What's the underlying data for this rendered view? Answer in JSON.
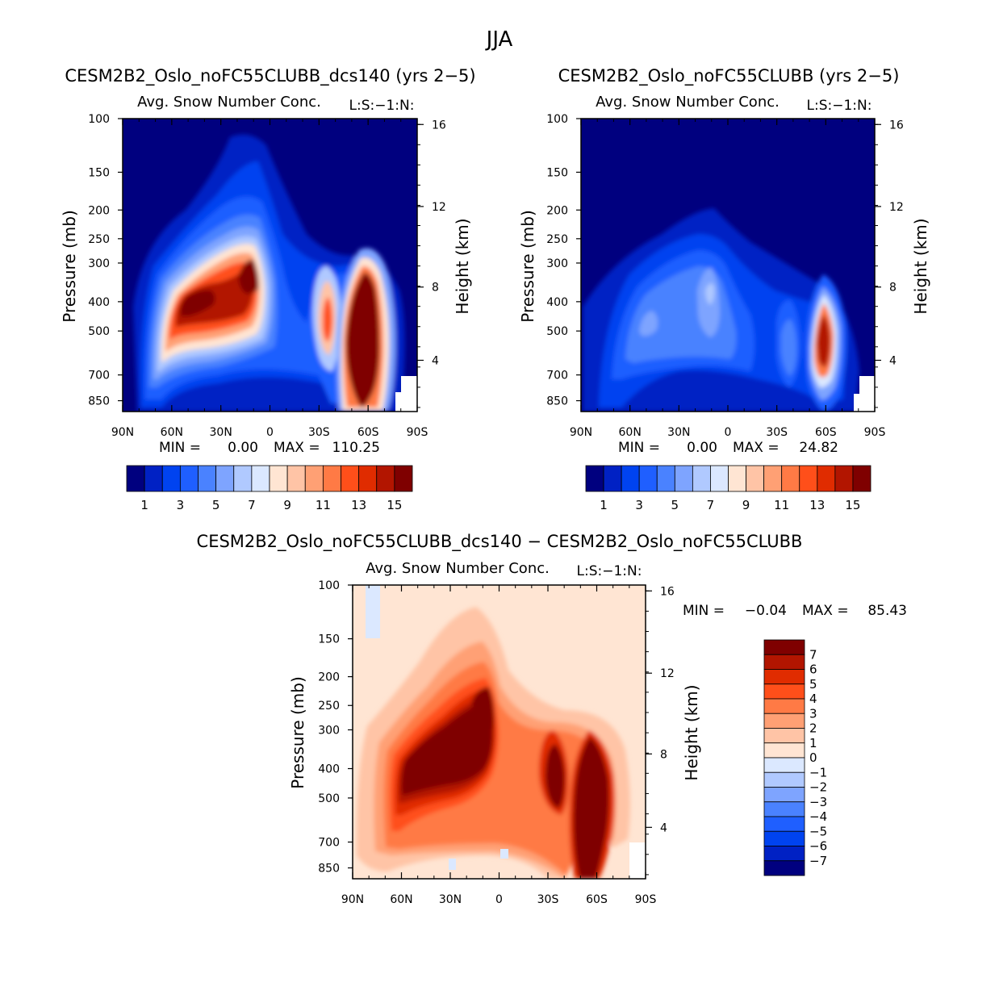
{
  "figure_title": "JJA",
  "chart_data": [
    {
      "type": "heatmap",
      "title": "CESM2B2_Oslo_noFC55CLUBB_dcs140 (yrs 2−5)",
      "subtitle": "Avg. Snow Number Conc.",
      "subtitle_suffix": "L:S:−1:N:",
      "xlabel": "",
      "ylabel": "Pressure (mb)",
      "ylabel_right": "Height (km)",
      "x_ticks": [
        "90N",
        "60N",
        "30N",
        "0",
        "30S",
        "60S",
        "90S"
      ],
      "y_ticks": [
        "100",
        "150",
        "200",
        "250",
        "300",
        "400",
        "500",
        "700",
        "850"
      ],
      "y_ticks_right": [
        "16",
        "12",
        "8",
        "4"
      ],
      "min_label": "MIN =",
      "min_value": "0.00",
      "max_label": "MAX =",
      "max_value": "110.25",
      "colorbar_labels": [
        "1",
        "3",
        "5",
        "7",
        "9",
        "11",
        "13",
        "15"
      ],
      "palette": [
        "#00007f",
        "#0021c4",
        "#0043f0",
        "#1f5fff",
        "#4a82ff",
        "#7ea4ff",
        "#b0c9ff",
        "#dbe8ff",
        "#ffe5d3",
        "#ffc4a6",
        "#ffa074",
        "#ff7a45",
        "#ff4f1a",
        "#e02c00",
        "#b21500",
        "#7f0000"
      ]
    },
    {
      "type": "heatmap",
      "title": "CESM2B2_Oslo_noFC55CLUBB (yrs 2−5)",
      "subtitle": "Avg. Snow Number Conc.",
      "subtitle_suffix": "L:S:−1:N:",
      "xlabel": "",
      "ylabel": "Pressure (mb)",
      "ylabel_right": "Height (km)",
      "x_ticks": [
        "90N",
        "60N",
        "30N",
        "0",
        "30S",
        "60S",
        "90S"
      ],
      "y_ticks": [
        "100",
        "150",
        "200",
        "250",
        "300",
        "400",
        "500",
        "700",
        "850"
      ],
      "y_ticks_right": [
        "16",
        "12",
        "8",
        "4"
      ],
      "min_label": "MIN =",
      "min_value": "0.00",
      "max_label": "MAX =",
      "max_value": "24.82",
      "colorbar_labels": [
        "1",
        "3",
        "5",
        "7",
        "9",
        "11",
        "13",
        "15"
      ]
    },
    {
      "type": "heatmap",
      "title": "CESM2B2_Oslo_noFC55CLUBB_dcs140 − CESM2B2_Oslo_noFC55CLUBB",
      "subtitle": "Avg. Snow Number Conc.",
      "subtitle_suffix": "L:S:−1:N:",
      "xlabel": "",
      "ylabel": "Pressure (mb)",
      "ylabel_right": "Height (km)",
      "x_ticks": [
        "90N",
        "60N",
        "30N",
        "0",
        "30S",
        "60S",
        "90S"
      ],
      "y_ticks": [
        "100",
        "150",
        "200",
        "250",
        "300",
        "400",
        "500",
        "700",
        "850"
      ],
      "y_ticks_right": [
        "16",
        "12",
        "8",
        "4"
      ],
      "min_label": "MIN =",
      "min_value": "−0.04",
      "max_label": "MAX =",
      "max_value": "85.43",
      "colorbar_labels": [
        "7",
        "6",
        "5",
        "4",
        "3",
        "2",
        "1",
        "0",
        "−1",
        "−2",
        "−3",
        "−4",
        "−5",
        "−6",
        "−7"
      ],
      "palette": [
        "#7f0000",
        "#b21500",
        "#e02c00",
        "#ff4f1a",
        "#ff7a45",
        "#ffa074",
        "#ffc4a6",
        "#ffe5d3",
        "#dbe8ff",
        "#b0c9ff",
        "#7ea4ff",
        "#4a82ff",
        "#1f5fff",
        "#0043f0",
        "#0021c4",
        "#00007f"
      ]
    }
  ]
}
